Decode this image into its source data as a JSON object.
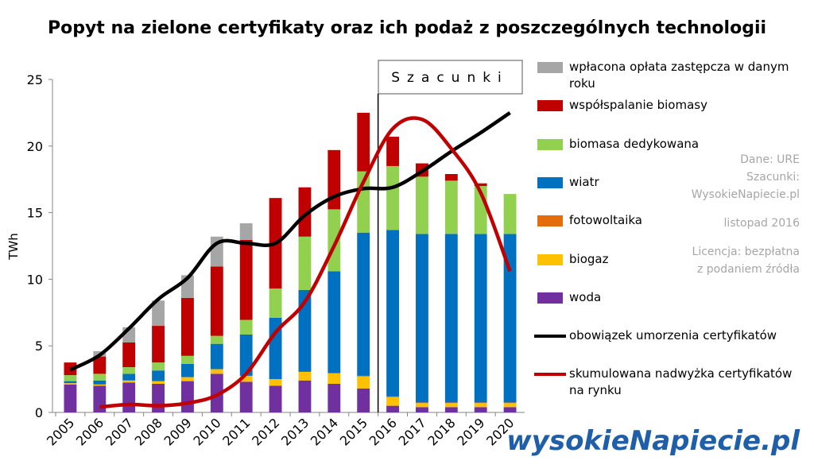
{
  "chart_data": {
    "type": "bar",
    "title": "Popyt na zielone certyfikaty oraz ich podaż z poszczególnych technologii",
    "y_label": "TWh",
    "categories": [
      "2005",
      "2006",
      "2007",
      "2008",
      "2009",
      "2010",
      "2011",
      "2012",
      "2013",
      "2014",
      "2015",
      "2016",
      "2017",
      "2018",
      "2019",
      "2020"
    ],
    "ylim": [
      0,
      25
    ],
    "yticks": [
      0,
      5,
      10,
      15,
      20,
      25
    ],
    "stacked": true,
    "estimate_label": "Szacunki",
    "estimate_start": "2016",
    "series": [
      {
        "name": "woda",
        "type": "bar",
        "color": "#7030a0",
        "values": [
          2.1,
          2.0,
          2.25,
          2.15,
          2.35,
          2.9,
          2.3,
          2.0,
          2.4,
          2.15,
          1.8,
          0.5,
          0.4,
          0.4,
          0.4,
          0.4
        ]
      },
      {
        "name": "biogaz",
        "type": "bar",
        "color": "#ffc000",
        "values": [
          0.1,
          0.1,
          0.15,
          0.2,
          0.3,
          0.35,
          0.45,
          0.5,
          0.65,
          0.8,
          0.9,
          0.65,
          0.3,
          0.3,
          0.3,
          0.3
        ]
      },
      {
        "name": "fotowoltaika",
        "type": "bar",
        "color": "#e46c0a",
        "values": [
          0,
          0,
          0,
          0,
          0,
          0,
          0,
          0,
          0,
          0,
          0.05,
          0.05,
          0.05,
          0.05,
          0.05,
          0.05
        ]
      },
      {
        "name": "wiatr",
        "type": "bar",
        "color": "#0070c0",
        "values": [
          0.15,
          0.3,
          0.5,
          0.8,
          1.0,
          1.9,
          3.1,
          4.6,
          6.15,
          7.65,
          10.75,
          12.5,
          12.65,
          12.65,
          12.65,
          12.65
        ]
      },
      {
        "name": "biomasa dedykowana",
        "type": "bar",
        "color": "#92d050",
        "values": [
          0.45,
          0.5,
          0.5,
          0.6,
          0.6,
          0.6,
          1.1,
          2.2,
          4.0,
          4.65,
          4.6,
          4.8,
          4.3,
          4.0,
          3.6,
          3.0
        ]
      },
      {
        "name": "współspalanie biomasy",
        "type": "bar",
        "color": "#c00000",
        "values": [
          0.95,
          1.3,
          1.85,
          2.75,
          4.35,
          5.2,
          6.0,
          6.8,
          3.7,
          4.45,
          4.4,
          2.2,
          1.0,
          0.5,
          0.2,
          0
        ]
      },
      {
        "name": "wpłacona opłata zastępcza  w danym roku",
        "type": "bar",
        "color": "#a6a6a6",
        "values": [
          0,
          0.4,
          1.15,
          1.9,
          1.7,
          2.25,
          1.25,
          0,
          0,
          0,
          0,
          0,
          0,
          0,
          0,
          0
        ]
      },
      {
        "name": "obowiązek umorzenia  certyfikatów",
        "type": "line",
        "color": "#000000",
        "values": [
          3.2,
          4.3,
          6.3,
          8.5,
          10.1,
          12.7,
          12.7,
          12.7,
          14.8,
          16.2,
          16.8,
          16.9,
          18.1,
          19.6,
          21.0,
          22.5
        ]
      },
      {
        "name": "skumulowana nadwyżka certyfikatów na rynku",
        "type": "line",
        "color": "#c00000",
        "values": [
          null,
          0.4,
          0.6,
          0.5,
          0.7,
          1.3,
          2.9,
          6.0,
          8.3,
          12.5,
          17.3,
          21.3,
          22.0,
          19.8,
          16.5,
          10.6
        ]
      }
    ],
    "notes": [
      "Dane: URE",
      "Szacunki:",
      "WysokieNapiecie.pl",
      "listopad 2016",
      "Licencja: bezpłatna",
      "z podaniem źródła"
    ],
    "logo": "wysokieNapiecie.pl"
  }
}
